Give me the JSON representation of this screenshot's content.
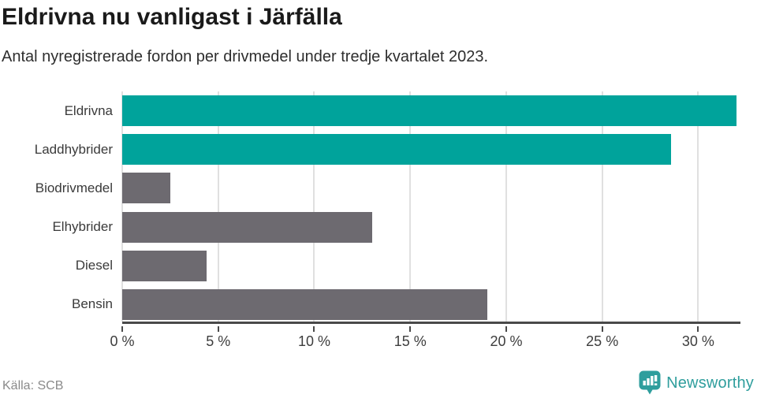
{
  "title": "Eldrivna nu vanligast i Järfälla",
  "subtitle": "Antal nyregistrerade fordon per drivmedel under tredje kvartalet 2023.",
  "source": "Källa: SCB",
  "brand": {
    "name": "Newsworthy",
    "color": "#2f9e9d",
    "icon": "bar-chart-speech-bubble-icon"
  },
  "colors": {
    "highlight_bar": "#00a39b",
    "default_bar": "#6d6a70",
    "gridline": "#e0e0e0",
    "axis": "#4a4a4a",
    "title_text": "#1a1a1a",
    "subtitle_text": "#2e2e2e",
    "label_text": "#3a3a3a",
    "source_text": "#8a8a8a"
  },
  "chart_data": {
    "type": "bar",
    "orientation": "horizontal",
    "title": "Eldrivna nu vanligast i Järfälla",
    "subtitle": "Antal nyregistrerade fordon per drivmedel under tredje kvartalet 2023.",
    "xlabel": "",
    "ylabel": "",
    "categories": [
      "Eldrivna",
      "Laddhybrider",
      "Biodrivmedel",
      "Elhybrider",
      "Diesel",
      "Bensin"
    ],
    "values": [
      32.0,
      28.6,
      2.5,
      13.0,
      4.4,
      19.0
    ],
    "unit": "%",
    "bar_colors": [
      "#00a39b",
      "#00a39b",
      "#6d6a70",
      "#6d6a70",
      "#6d6a70",
      "#6d6a70"
    ],
    "xlim": [
      0,
      32.2
    ],
    "grid": true,
    "legend": false,
    "ticks": [
      {
        "value": 0,
        "label": "0 %"
      },
      {
        "value": 5,
        "label": "5 %"
      },
      {
        "value": 10,
        "label": "10 %"
      },
      {
        "value": 15,
        "label": "15 %"
      },
      {
        "value": 20,
        "label": "20 %"
      },
      {
        "value": 25,
        "label": "25 %"
      },
      {
        "value": 30,
        "label": "30 %"
      }
    ]
  }
}
